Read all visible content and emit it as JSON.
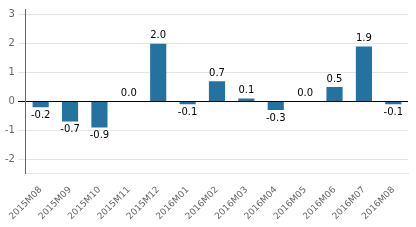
{
  "chart_data": {
    "type": "bar",
    "categories": [
      "2015M08",
      "2015M09",
      "2015M10",
      "2015M11",
      "2015M12",
      "2016M01",
      "2016M02",
      "2016M03",
      "2016M04",
      "2016M05",
      "2016M06",
      "2016M07",
      "2016M08"
    ],
    "values": [
      -0.2,
      -0.7,
      -0.9,
      0.0,
      2.0,
      -0.1,
      0.7,
      0.1,
      -0.3,
      0.0,
      0.5,
      1.9,
      -0.1
    ],
    "value_labels": [
      "-0.2",
      "-0.7",
      "-0.9",
      "0.0",
      "2.0",
      "-0.1",
      "0.7",
      "0.1",
      "-0.3",
      "0.0",
      "0.5",
      "1.9",
      "-0.1"
    ],
    "color": "#2372a0",
    "ylim": [
      -2.5,
      3.2
    ],
    "yticks": [
      -2,
      -1,
      0,
      1,
      2,
      3
    ],
    "grid": true,
    "data_labels": true
  }
}
